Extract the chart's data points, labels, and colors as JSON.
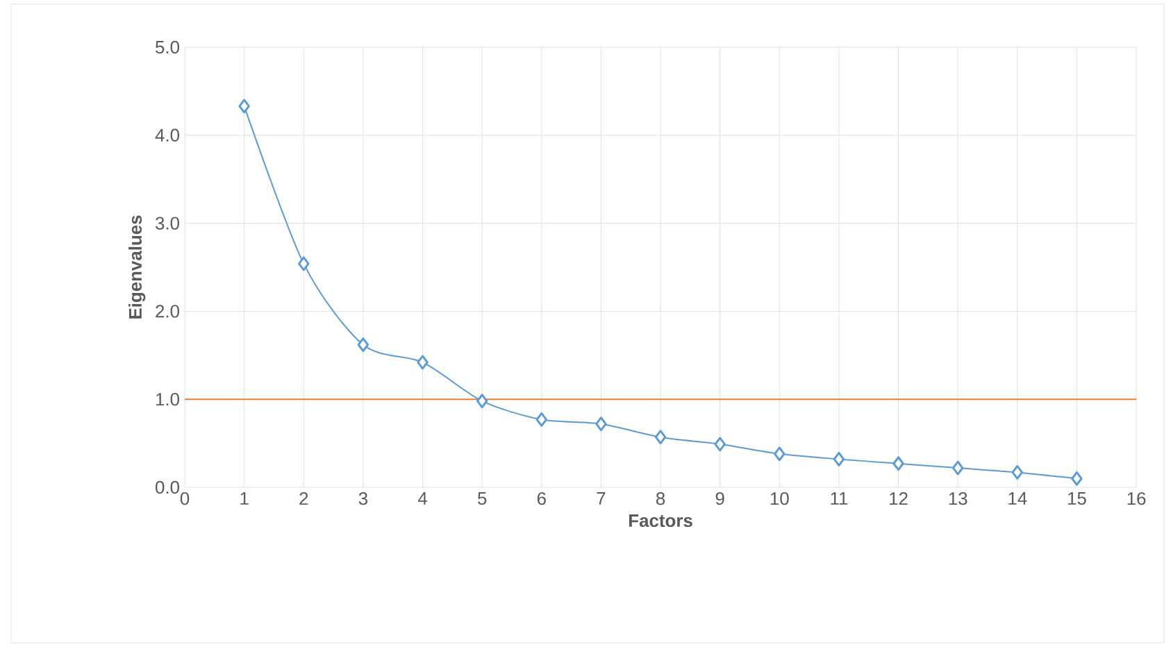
{
  "chart_data": {
    "type": "line",
    "xlabel": "Factors",
    "ylabel": "Eigenvalues",
    "x": [
      1,
      2,
      3,
      4,
      5,
      6,
      7,
      8,
      9,
      10,
      11,
      12,
      13,
      14,
      15
    ],
    "series": [
      {
        "color": "#5b9bd5",
        "values": [
          4.33,
          2.54,
          1.62,
          1.42,
          0.98,
          0.77,
          0.72,
          0.57,
          0.49,
          0.38,
          0.32,
          0.27,
          0.22,
          0.17,
          0.1
        ]
      }
    ],
    "xlim": [
      0,
      16
    ],
    "xticks": [
      0,
      1,
      2,
      3,
      4,
      5,
      6,
      7,
      8,
      9,
      10,
      11,
      12,
      13,
      14,
      15,
      16
    ],
    "ylim": [
      0,
      5
    ],
    "yticks": [
      {
        "value": 0,
        "label": "0.0"
      },
      {
        "value": 1,
        "label": "1.0"
      },
      {
        "value": 2,
        "label": "2.0"
      },
      {
        "value": 3,
        "label": "3.0"
      },
      {
        "value": 4,
        "label": "4.0"
      },
      {
        "value": 5,
        "label": "5.0"
      }
    ],
    "ref_lines": [
      {
        "axis": "y",
        "value": 1,
        "color": "#ed7d31"
      }
    ],
    "grid": true,
    "marker": "diamond",
    "line_style": "solid"
  }
}
